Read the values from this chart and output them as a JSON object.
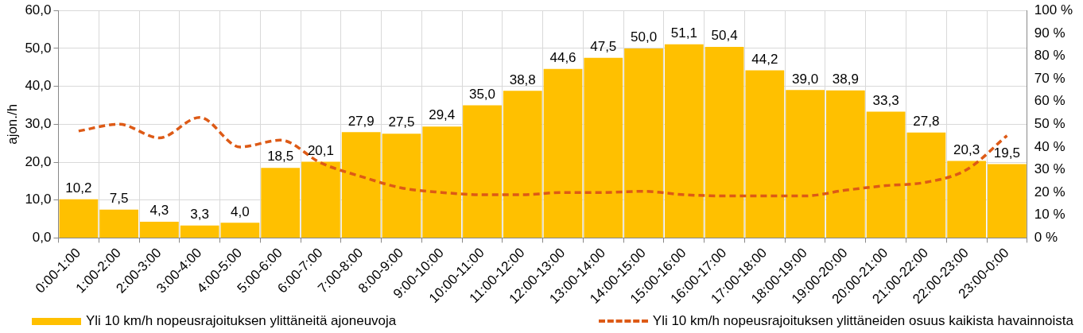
{
  "chart_data": {
    "type": "bar",
    "categories": [
      "0:00-1:00",
      "1:00-2:00",
      "2:00-3:00",
      "3:00-4:00",
      "4:00-5:00",
      "5:00-6:00",
      "6:00-7:00",
      "7:00-8:00",
      "8:00-9:00",
      "9:00-10:00",
      "10:00-11:00",
      "11:00-12:00",
      "12:00-13:00",
      "13:00-14:00",
      "14:00-15:00",
      "15:00-16:00",
      "16:00-17:00",
      "17:00-18:00",
      "18:00-19:00",
      "19:00-20:00",
      "20:00-21:00",
      "21:00-22:00",
      "22:00-23:00",
      "23:00-0:00"
    ],
    "ylabel": "ajon./h",
    "ylim": [
      0,
      60
    ],
    "yticks": [
      {
        "value": 0,
        "label": "0,0"
      },
      {
        "value": 10,
        "label": "10,0"
      },
      {
        "value": 20,
        "label": "20,0"
      },
      {
        "value": 30,
        "label": "30,0"
      },
      {
        "value": 40,
        "label": "40,0"
      },
      {
        "value": 50,
        "label": "50,0"
      },
      {
        "value": 60,
        "label": "60,0"
      }
    ],
    "y2lim": [
      0,
      100
    ],
    "y2ticks": [
      {
        "value": 0,
        "label": "0 %"
      },
      {
        "value": 10,
        "label": "10 %"
      },
      {
        "value": 20,
        "label": "20 %"
      },
      {
        "value": 30,
        "label": "30 %"
      },
      {
        "value": 40,
        "label": "40 %"
      },
      {
        "value": 50,
        "label": "50 %"
      },
      {
        "value": 60,
        "label": "60 %"
      },
      {
        "value": 70,
        "label": "70 %"
      },
      {
        "value": 80,
        "label": "80 %"
      },
      {
        "value": 90,
        "label": "90 %"
      },
      {
        "value": 100,
        "label": "100 %"
      }
    ],
    "series": [
      {
        "name": "Yli 10 km/h nopeusrajoituksen ylittäneitä ajoneuvoja",
        "color": "#ffc000",
        "values": [
          10.2,
          7.5,
          4.3,
          3.3,
          4.0,
          18.5,
          20.1,
          27.9,
          27.5,
          29.4,
          35.0,
          38.8,
          44.6,
          47.5,
          50.0,
          51.1,
          50.4,
          44.2,
          39.0,
          38.9,
          33.3,
          27.8,
          20.3,
          19.5
        ],
        "value_labels": [
          "10,2",
          "7,5",
          "4,3",
          "3,3",
          "4,0",
          "18,5",
          "20,1",
          "27,9",
          "27,5",
          "29,4",
          "35,0",
          "38,8",
          "44,6",
          "47,5",
          "50,0",
          "51,1",
          "50,4",
          "44,2",
          "39,0",
          "38,9",
          "33,3",
          "27,8",
          "20,3",
          "19,5"
        ]
      },
      {
        "name": "Yli 10 km/h nopeusrajoituksen ylittäneiden osuus kaikista havainnoista",
        "type": "line",
        "axis": "y2",
        "color": "#dd5a16",
        "line_style": "dashed",
        "marker": "none",
        "values": [
          47,
          50,
          44,
          53,
          40,
          43,
          33,
          27,
          22,
          20,
          19,
          19,
          20,
          20,
          20.5,
          19,
          18.5,
          18.5,
          18.5,
          21,
          23,
          24.5,
          30,
          45
        ]
      }
    ],
    "grid": true,
    "legend": "bottom"
  }
}
